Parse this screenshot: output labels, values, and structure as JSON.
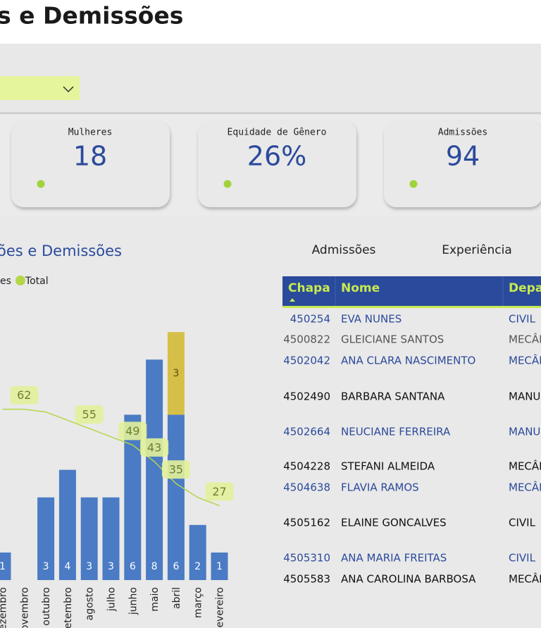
{
  "header": {
    "title": "s e Demissões"
  },
  "filter": {},
  "kpis": [
    {
      "label": "Mulheres",
      "value": "18"
    },
    {
      "label": "Equidade de Gênero",
      "value": "26%"
    },
    {
      "label": "Admissões",
      "value": "94"
    }
  ],
  "chart_data": {
    "type": "bar",
    "title": "ões e Demissões",
    "categories": [
      "ezembro",
      "ovembro",
      "outubro",
      "etembro",
      "agosto",
      "julho",
      "junho",
      "maio",
      "abril",
      "março",
      "evereiro"
    ],
    "series": [
      {
        "color": "#4a7bc4",
        "values": [
          1,
          null,
          3,
          4,
          3,
          3,
          6,
          8,
          6,
          2,
          1
        ]
      },
      {
        "name": "es",
        "color": "#d6bf48",
        "values": [
          null,
          null,
          null,
          null,
          null,
          null,
          null,
          null,
          3,
          null,
          null
        ]
      },
      {
        "name": "Total",
        "type": "line",
        "axis": "y2",
        "color": "#b4d648",
        "values": [
          62,
          62,
          61,
          58,
          55,
          52,
          49,
          43,
          35,
          30,
          27
        ],
        "value_labels": [
          null,
          "62",
          null,
          null,
          "55",
          null,
          "49",
          "43",
          "35",
          null,
          "27"
        ]
      }
    ],
    "ylim": [
      0,
      10
    ],
    "y2lim": [
      0,
      100
    ],
    "stacked": true
  },
  "tabs": [
    "Admissões",
    "Experiência"
  ],
  "table": {
    "columns": [
      "Chapa",
      "Nome",
      "Depar"
    ],
    "rows": [
      [
        "450254",
        "EVA NUNES",
        "CIVIL"
      ],
      [
        "4500822",
        "GLEICIANE SANTOS",
        "MECÂN"
      ],
      [
        "4502042",
        "ANA CLARA NASCIMENTO",
        "MECÂN"
      ],
      [
        "4502490",
        "BARBARA SANTANA",
        "MANU"
      ],
      [
        "4502664",
        "NEUCIANE FERREIRA",
        "MANU"
      ],
      [
        "4504228",
        "STEFANI ALMEIDA",
        "MECÂN"
      ],
      [
        "4504638",
        "FLAVIA RAMOS",
        "MECÂN"
      ],
      [
        "4505162",
        "ELAINE GONCALVES",
        "CIVIL"
      ],
      [
        "4505310",
        "ANA MARIA FREITAS",
        "CIVIL"
      ],
      [
        "4505583",
        "ANA CAROLINA BARBOSA",
        "MECÂN"
      ]
    ]
  }
}
